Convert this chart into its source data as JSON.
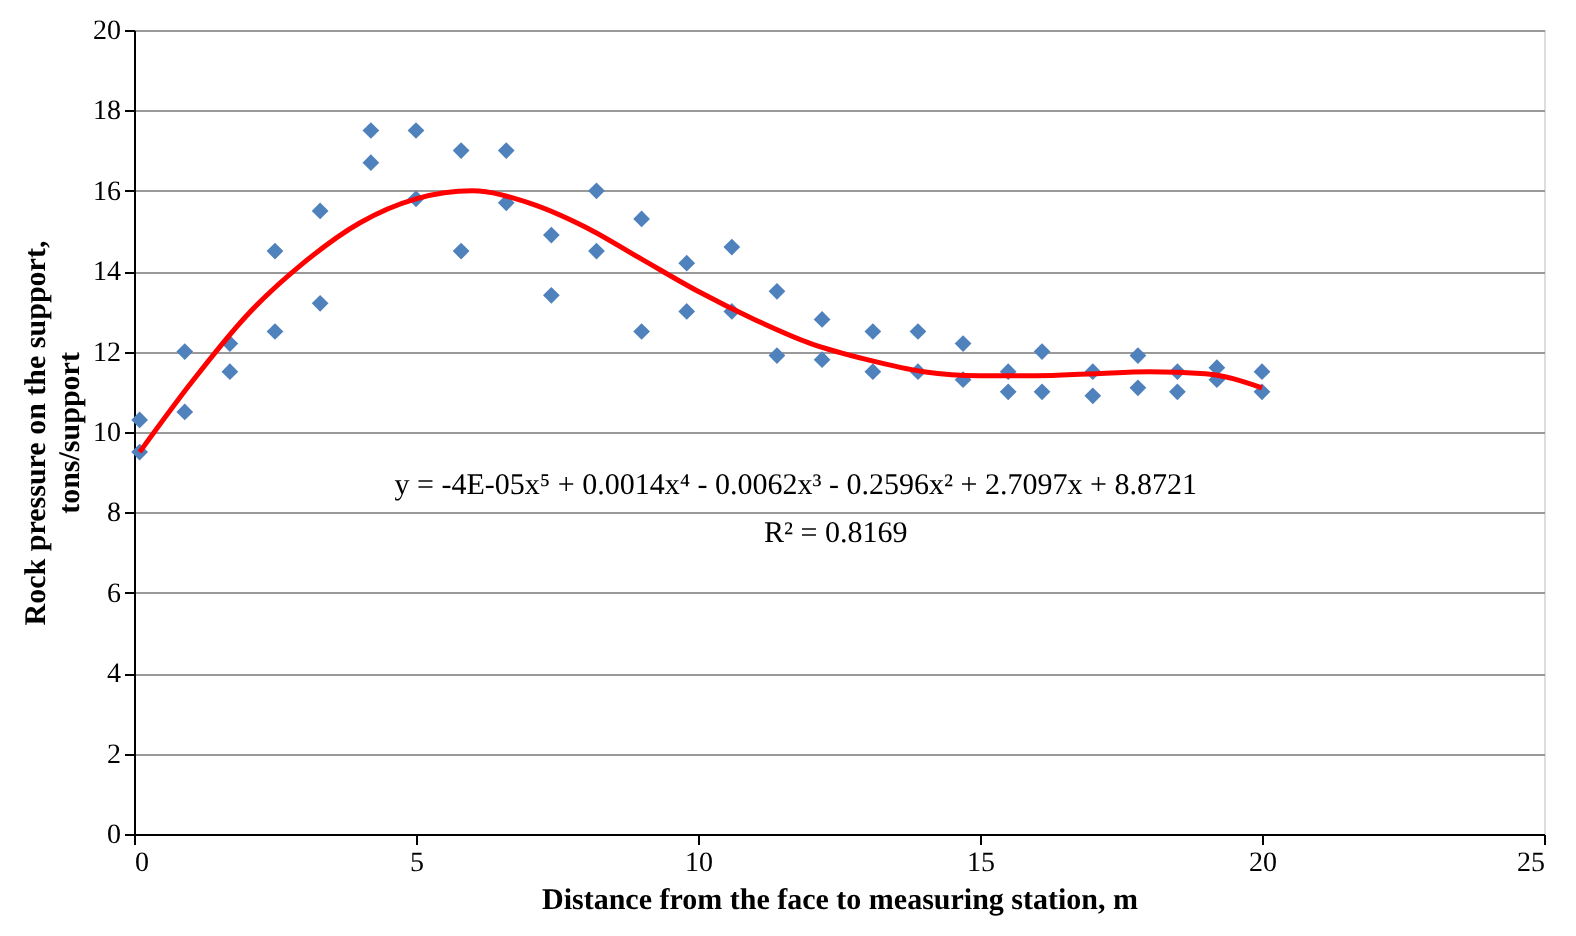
{
  "chart_data": {
    "type": "scatter",
    "xlabel": "Distance from the face to measuring station, m",
    "ylabel": "Rock pressure on the support, tons/support",
    "xlim": [
      0,
      25
    ],
    "xticks": [
      0,
      5,
      10,
      15,
      20,
      25
    ],
    "ylim": [
      0,
      20
    ],
    "yticks": [
      0,
      2,
      4,
      6,
      8,
      10,
      12,
      14,
      16,
      18,
      20
    ],
    "grid": "y",
    "legend": false,
    "series": [
      {
        "marker": "diamond",
        "color": "#4f81bd",
        "x": [
          0.1,
          0.1,
          0.9,
          0.9,
          1.7,
          1.7,
          2.5,
          2.5,
          3.3,
          3.3,
          4.2,
          4.2,
          5.0,
          5.0,
          5.8,
          5.8,
          6.6,
          6.6,
          7.4,
          7.4,
          8.2,
          8.2,
          9.0,
          9.0,
          9.8,
          9.8,
          10.6,
          10.6,
          11.4,
          11.4,
          12.2,
          12.2,
          13.1,
          13.1,
          13.9,
          13.9,
          14.7,
          14.7,
          15.5,
          15.5,
          16.1,
          16.1,
          17.0,
          17.0,
          17.8,
          17.8,
          18.5,
          18.5,
          19.2,
          19.2,
          20.0,
          20.0
        ],
        "values": [
          10.3,
          9.5,
          12.0,
          10.5,
          12.2,
          11.5,
          14.5,
          12.5,
          15.5,
          13.2,
          17.5,
          16.7,
          17.5,
          15.8,
          17.0,
          14.5,
          17.0,
          15.7,
          14.9,
          13.4,
          16.0,
          14.5,
          15.3,
          12.5,
          14.2,
          13.0,
          14.6,
          13.0,
          13.5,
          11.9,
          12.8,
          11.8,
          12.5,
          11.5,
          12.5,
          11.5,
          12.2,
          11.3,
          11.5,
          11.0,
          12.0,
          11.0,
          11.5,
          10.9,
          11.9,
          11.1,
          11.5,
          11.0,
          11.6,
          11.3,
          11.5,
          11.0
        ]
      },
      {
        "type": "line",
        "line_style": "solid",
        "color": "#ff0000",
        "x": [
          0.1,
          1,
          2,
          3,
          4,
          5,
          6,
          7,
          8,
          9,
          10,
          11,
          12,
          13,
          14,
          15,
          16,
          17,
          18,
          19,
          20
        ],
        "values": [
          9.5,
          11.2,
          12.9,
          14.2,
          15.2,
          15.8,
          16.0,
          15.7,
          15.1,
          14.3,
          13.5,
          12.8,
          12.2,
          11.8,
          11.5,
          11.4,
          11.4,
          11.45,
          11.5,
          11.45,
          11.1
        ]
      }
    ],
    "annotations": [
      "y = -4E-05x⁵ + 0.0014x⁴ - 0.0062x³ - 0.2596x² + 2.7097x + 8.8721",
      "R² = 0.8169"
    ]
  }
}
